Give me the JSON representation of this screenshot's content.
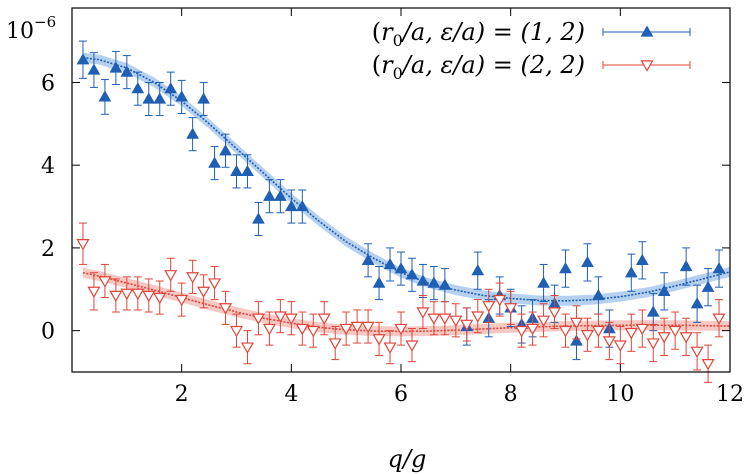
{
  "chart_data": {
    "type": "scatter",
    "title": "",
    "xlabel": "q/g",
    "ylabel": "",
    "y_multiplier_label": "10",
    "y_multiplier_exponent": "−6",
    "xlim": [
      0,
      12
    ],
    "ylim": [
      -1,
      7.8
    ],
    "xticks": [
      2,
      4,
      6,
      8,
      10,
      12
    ],
    "yticks": [
      0,
      2,
      4,
      6
    ],
    "grid": false,
    "legend_position": "top-right",
    "series": [
      {
        "name": "(r0/a, ε/a) = (1, 2)",
        "name_parts": {
          "open": "(",
          "r": "r",
          "sub": "0",
          "slash_a1": "/a, ",
          "eps": "ε",
          "slash_a2": "/a) = (1, 2)"
        },
        "color": "#1f5fb4",
        "band_color": "#9ec0ea",
        "marker": "triangle-up-filled",
        "points": [
          {
            "x": 0.2,
            "y": 6.55,
            "err": 0.45
          },
          {
            "x": 0.4,
            "y": 6.3,
            "err": 0.42
          },
          {
            "x": 0.6,
            "y": 5.65,
            "err": 0.42
          },
          {
            "x": 0.8,
            "y": 6.35,
            "err": 0.4
          },
          {
            "x": 1.0,
            "y": 6.25,
            "err": 0.4
          },
          {
            "x": 1.2,
            "y": 5.85,
            "err": 0.4
          },
          {
            "x": 1.4,
            "y": 5.6,
            "err": 0.4
          },
          {
            "x": 1.6,
            "y": 5.6,
            "err": 0.4
          },
          {
            "x": 1.8,
            "y": 5.85,
            "err": 0.4
          },
          {
            "x": 2.0,
            "y": 5.65,
            "err": 0.4
          },
          {
            "x": 2.2,
            "y": 4.75,
            "err": 0.4
          },
          {
            "x": 2.4,
            "y": 5.6,
            "err": 0.4
          },
          {
            "x": 2.6,
            "y": 4.05,
            "err": 0.4
          },
          {
            "x": 2.8,
            "y": 4.35,
            "err": 0.4
          },
          {
            "x": 3.0,
            "y": 3.85,
            "err": 0.4
          },
          {
            "x": 3.2,
            "y": 3.85,
            "err": 0.4
          },
          {
            "x": 3.4,
            "y": 2.7,
            "err": 0.4
          },
          {
            "x": 3.6,
            "y": 3.25,
            "err": 0.4
          },
          {
            "x": 3.8,
            "y": 3.25,
            "err": 0.4
          },
          {
            "x": 4.0,
            "y": 3.0,
            "err": 0.4
          },
          {
            "x": 4.2,
            "y": 3.0,
            "err": 0.4
          },
          {
            "x": 5.4,
            "y": 1.7,
            "err": 0.4
          },
          {
            "x": 5.6,
            "y": 1.15,
            "err": 0.4
          },
          {
            "x": 5.8,
            "y": 1.6,
            "err": 0.4
          },
          {
            "x": 6.0,
            "y": 1.5,
            "err": 0.4
          },
          {
            "x": 6.2,
            "y": 1.35,
            "err": 0.4
          },
          {
            "x": 6.4,
            "y": 1.2,
            "err": 0.4
          },
          {
            "x": 6.6,
            "y": 1.15,
            "err": 0.4
          },
          {
            "x": 6.8,
            "y": 1.1,
            "err": 0.4
          },
          {
            "x": 7.2,
            "y": 0.1,
            "err": 0.45
          },
          {
            "x": 7.4,
            "y": 1.45,
            "err": 0.45
          },
          {
            "x": 7.6,
            "y": 0.3,
            "err": 0.45
          },
          {
            "x": 7.8,
            "y": 0.85,
            "err": 0.45
          },
          {
            "x": 8.0,
            "y": 0.55,
            "err": 0.45
          },
          {
            "x": 8.2,
            "y": 0.15,
            "err": 0.45
          },
          {
            "x": 8.4,
            "y": 0.3,
            "err": 0.45
          },
          {
            "x": 8.6,
            "y": 1.15,
            "err": 0.45
          },
          {
            "x": 8.8,
            "y": 0.65,
            "err": 0.45
          },
          {
            "x": 9.0,
            "y": 1.5,
            "err": 0.45
          },
          {
            "x": 9.2,
            "y": -0.25,
            "err": 0.45
          },
          {
            "x": 9.4,
            "y": 1.65,
            "err": 0.45
          },
          {
            "x": 9.6,
            "y": 0.85,
            "err": 0.45
          },
          {
            "x": 9.8,
            "y": 0.05,
            "err": 0.45
          },
          {
            "x": 10.2,
            "y": 1.4,
            "err": 0.45
          },
          {
            "x": 10.4,
            "y": 1.7,
            "err": 0.45
          },
          {
            "x": 10.6,
            "y": 0.45,
            "err": 0.45
          },
          {
            "x": 10.8,
            "y": 0.95,
            "err": 0.45
          },
          {
            "x": 11.2,
            "y": 1.55,
            "err": 0.45
          },
          {
            "x": 11.4,
            "y": 0.65,
            "err": 0.45
          },
          {
            "x": 11.6,
            "y": 1.05,
            "err": 0.45
          },
          {
            "x": 11.8,
            "y": 1.5,
            "err": 0.45
          }
        ],
        "fit": [
          {
            "x": 0.2,
            "y": 6.6
          },
          {
            "x": 0.5,
            "y": 6.55
          },
          {
            "x": 1.0,
            "y": 6.35
          },
          {
            "x": 1.5,
            "y": 6.0
          },
          {
            "x": 2.0,
            "y": 5.55
          },
          {
            "x": 2.5,
            "y": 5.0
          },
          {
            "x": 3.0,
            "y": 4.4
          },
          {
            "x": 3.5,
            "y": 3.8
          },
          {
            "x": 4.0,
            "y": 3.2
          },
          {
            "x": 4.5,
            "y": 2.65
          },
          {
            "x": 5.0,
            "y": 2.15
          },
          {
            "x": 5.5,
            "y": 1.75
          },
          {
            "x": 6.0,
            "y": 1.4
          },
          {
            "x": 6.5,
            "y": 1.15
          },
          {
            "x": 7.0,
            "y": 0.98
          },
          {
            "x": 7.5,
            "y": 0.85
          },
          {
            "x": 8.0,
            "y": 0.78
          },
          {
            "x": 8.5,
            "y": 0.73
          },
          {
            "x": 9.0,
            "y": 0.72
          },
          {
            "x": 9.5,
            "y": 0.75
          },
          {
            "x": 10.0,
            "y": 0.82
          },
          {
            "x": 10.5,
            "y": 0.93
          },
          {
            "x": 11.0,
            "y": 1.08
          },
          {
            "x": 11.5,
            "y": 1.25
          },
          {
            "x": 12.0,
            "y": 1.42
          }
        ],
        "band_halfwidth": 0.12
      },
      {
        "name": "(r0/a, ε/a) = (2, 2)",
        "name_parts": {
          "open": "(",
          "r": "r",
          "sub": "0",
          "slash_a1": "/a, ",
          "eps": "ε",
          "slash_a2": "/a) = (2, 2)"
        },
        "color": "#e0453a",
        "band_color": "#f4b4ad",
        "marker": "triangle-down-open",
        "points": [
          {
            "x": 0.2,
            "y": 2.1,
            "err": 0.5
          },
          {
            "x": 0.4,
            "y": 0.95,
            "err": 0.45
          },
          {
            "x": 0.6,
            "y": 1.2,
            "err": 0.4
          },
          {
            "x": 0.8,
            "y": 0.85,
            "err": 0.4
          },
          {
            "x": 1.0,
            "y": 0.9,
            "err": 0.4
          },
          {
            "x": 1.2,
            "y": 0.9,
            "err": 0.4
          },
          {
            "x": 1.4,
            "y": 0.85,
            "err": 0.4
          },
          {
            "x": 1.6,
            "y": 0.8,
            "err": 0.4
          },
          {
            "x": 1.8,
            "y": 1.35,
            "err": 0.4
          },
          {
            "x": 2.0,
            "y": 0.75,
            "err": 0.4
          },
          {
            "x": 2.2,
            "y": 1.3,
            "err": 0.4
          },
          {
            "x": 2.4,
            "y": 0.95,
            "err": 0.4
          },
          {
            "x": 2.6,
            "y": 1.15,
            "err": 0.4
          },
          {
            "x": 2.8,
            "y": 0.55,
            "err": 0.4
          },
          {
            "x": 3.0,
            "y": 0.0,
            "err": 0.4
          },
          {
            "x": 3.2,
            "y": -0.4,
            "err": 0.4
          },
          {
            "x": 3.4,
            "y": 0.3,
            "err": 0.4
          },
          {
            "x": 3.6,
            "y": 0.05,
            "err": 0.4
          },
          {
            "x": 3.8,
            "y": 0.35,
            "err": 0.4
          },
          {
            "x": 4.0,
            "y": 0.3,
            "err": 0.4
          },
          {
            "x": 4.2,
            "y": 0.05,
            "err": 0.4
          },
          {
            "x": 4.4,
            "y": 0.0,
            "err": 0.4
          },
          {
            "x": 4.6,
            "y": 0.3,
            "err": 0.4
          },
          {
            "x": 4.8,
            "y": -0.3,
            "err": 0.4
          },
          {
            "x": 5.0,
            "y": 0.05,
            "err": 0.4
          },
          {
            "x": 5.2,
            "y": 0.1,
            "err": 0.4
          },
          {
            "x": 5.4,
            "y": 0.1,
            "err": 0.4
          },
          {
            "x": 5.6,
            "y": -0.2,
            "err": 0.4
          },
          {
            "x": 5.8,
            "y": -0.4,
            "err": 0.4
          },
          {
            "x": 6.0,
            "y": 0.05,
            "err": 0.4
          },
          {
            "x": 6.2,
            "y": -0.35,
            "err": 0.4
          },
          {
            "x": 6.4,
            "y": 0.45,
            "err": 0.4
          },
          {
            "x": 6.6,
            "y": 0.3,
            "err": 0.4
          },
          {
            "x": 6.8,
            "y": 0.3,
            "err": 0.4
          },
          {
            "x": 7.0,
            "y": 0.25,
            "err": 0.4
          },
          {
            "x": 7.2,
            "y": 0.15,
            "err": 0.4
          },
          {
            "x": 7.4,
            "y": 0.35,
            "err": 0.4
          },
          {
            "x": 7.6,
            "y": 0.6,
            "err": 0.4
          },
          {
            "x": 7.8,
            "y": 0.75,
            "err": 0.4
          },
          {
            "x": 8.0,
            "y": 0.55,
            "err": 0.4
          },
          {
            "x": 8.2,
            "y": 0.0,
            "err": 0.4
          },
          {
            "x": 8.4,
            "y": 0.05,
            "err": 0.4
          },
          {
            "x": 8.6,
            "y": 0.25,
            "err": 0.4
          },
          {
            "x": 8.8,
            "y": 0.45,
            "err": 0.4
          },
          {
            "x": 9.0,
            "y": 0.0,
            "err": 0.4
          },
          {
            "x": 9.2,
            "y": 0.2,
            "err": 0.4
          },
          {
            "x": 9.4,
            "y": -0.1,
            "err": 0.4
          },
          {
            "x": 9.6,
            "y": 0.0,
            "err": 0.4
          },
          {
            "x": 9.8,
            "y": -0.25,
            "err": 0.45
          },
          {
            "x": 10.0,
            "y": -0.35,
            "err": 0.45
          },
          {
            "x": 10.2,
            "y": -0.05,
            "err": 0.45
          },
          {
            "x": 10.4,
            "y": 0.05,
            "err": 0.45
          },
          {
            "x": 10.6,
            "y": -0.3,
            "err": 0.45
          },
          {
            "x": 10.8,
            "y": -0.15,
            "err": 0.45
          },
          {
            "x": 11.0,
            "y": 0.0,
            "err": 0.45
          },
          {
            "x": 11.2,
            "y": -0.15,
            "err": 0.45
          },
          {
            "x": 11.4,
            "y": -0.5,
            "err": 0.45
          },
          {
            "x": 11.6,
            "y": -0.8,
            "err": 0.45
          },
          {
            "x": 11.8,
            "y": 0.3,
            "err": 0.45
          }
        ],
        "fit": [
          {
            "x": 0.2,
            "y": 1.4
          },
          {
            "x": 0.5,
            "y": 1.32
          },
          {
            "x": 1.0,
            "y": 1.15
          },
          {
            "x": 1.5,
            "y": 0.98
          },
          {
            "x": 2.0,
            "y": 0.8
          },
          {
            "x": 2.5,
            "y": 0.62
          },
          {
            "x": 3.0,
            "y": 0.45
          },
          {
            "x": 3.5,
            "y": 0.3
          },
          {
            "x": 4.0,
            "y": 0.18
          },
          {
            "x": 4.5,
            "y": 0.08
          },
          {
            "x": 5.0,
            "y": 0.02
          },
          {
            "x": 5.5,
            "y": -0.01
          },
          {
            "x": 6.0,
            "y": -0.02
          },
          {
            "x": 6.5,
            "y": -0.01
          },
          {
            "x": 7.0,
            "y": 0.01
          },
          {
            "x": 7.5,
            "y": 0.04
          },
          {
            "x": 8.0,
            "y": 0.07
          },
          {
            "x": 8.5,
            "y": 0.09
          },
          {
            "x": 9.0,
            "y": 0.11
          },
          {
            "x": 9.5,
            "y": 0.12
          },
          {
            "x": 10.0,
            "y": 0.13
          },
          {
            "x": 10.5,
            "y": 0.13
          },
          {
            "x": 11.0,
            "y": 0.13
          },
          {
            "x": 11.5,
            "y": 0.12
          },
          {
            "x": 12.0,
            "y": 0.11
          }
        ],
        "band_halfwidth": 0.12
      }
    ]
  }
}
